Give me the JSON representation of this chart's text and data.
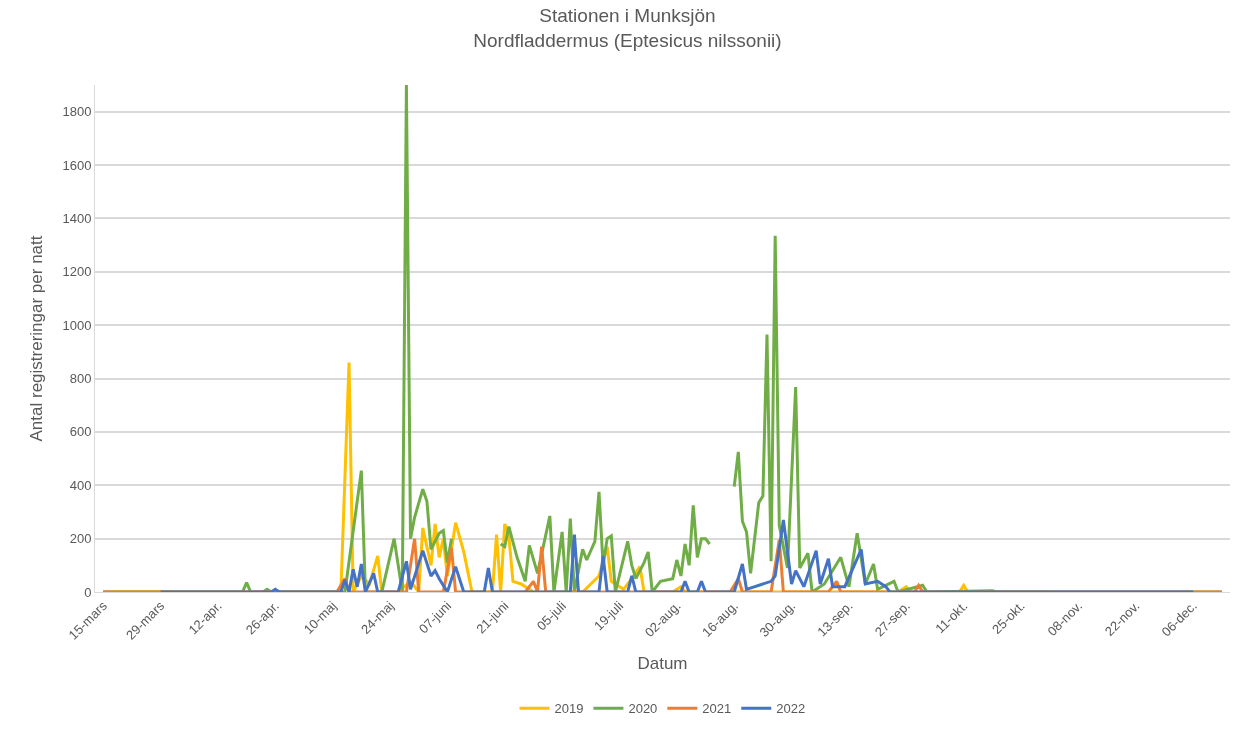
{
  "chart_data": {
    "type": "line",
    "title": "Stationen i Munksjön\nNordfladdermus (Eptesicus nilssonii)",
    "xlabel": "Datum",
    "ylabel": "Antal registreringar per natt",
    "xlim": [
      "--03-13",
      "--12-15"
    ],
    "xticks": [
      {
        "value": "--03-15",
        "label": "15-mars"
      },
      {
        "value": "--03-29",
        "label": "29-mars"
      },
      {
        "value": "--04-12",
        "label": "12-apr."
      },
      {
        "value": "--04-26",
        "label": "26-apr."
      },
      {
        "value": "--05-10",
        "label": "10-maj"
      },
      {
        "value": "--05-24",
        "label": "24-maj"
      },
      {
        "value": "--06-07",
        "label": "07-juni"
      },
      {
        "value": "--06-21",
        "label": "21-juni"
      },
      {
        "value": "--07-05",
        "label": "05-juli"
      },
      {
        "value": "--07-19",
        "label": "19-juli"
      },
      {
        "value": "--08-02",
        "label": "02-aug."
      },
      {
        "value": "--08-16",
        "label": "16-aug."
      },
      {
        "value": "--08-30",
        "label": "30-aug."
      },
      {
        "value": "--09-13",
        "label": "13-sep."
      },
      {
        "value": "--09-27",
        "label": "27-sep."
      },
      {
        "value": "--10-11",
        "label": "11-okt."
      },
      {
        "value": "--10-25",
        "label": "25-okt."
      },
      {
        "value": "--11-08",
        "label": "08-nov."
      },
      {
        "value": "--11-22",
        "label": "22-nov."
      },
      {
        "value": "--12-06",
        "label": "06-dec."
      }
    ],
    "ylim": [
      0,
      1900
    ],
    "yticks": [
      0,
      200,
      400,
      600,
      800,
      1000,
      1200,
      1400,
      1600,
      1800
    ],
    "grid": "y",
    "legend": "bottom",
    "marker": "none",
    "line_style": "solid",
    "series": [
      {
        "name": "2019",
        "color": "#ffc000",
        "x": [
          "--03-15",
          "--05-12",
          "--05-14",
          "--05-15",
          "--05-17",
          "--05-19",
          "--05-21",
          "--05-22",
          "--05-26",
          "--05-29",
          "--05-31",
          "--06-01",
          "--06-03",
          "--06-04",
          "--06-05",
          "--06-06",
          "--06-07",
          "--06-09",
          "--06-11",
          "--06-13",
          "--06-18",
          "--06-19",
          "--06-20",
          "--06-21",
          "--06-22",
          "--06-23",
          "--06-25",
          "--06-28",
          "--07-10",
          "--07-12",
          "--07-14",
          "--07-16",
          "--07-17",
          "--07-20",
          "--07-22",
          "--07-24",
          "--07-25",
          "--08-01",
          "--08-03",
          "--08-04",
          "--09-25",
          "--09-27",
          "--09-28",
          "--10-10",
          "--10-11",
          "--10-12",
          "--10-31"
        ],
        "values": [
          0,
          0,
          860,
          0,
          60,
          30,
          135,
          0,
          0,
          40,
          0,
          240,
          100,
          255,
          130,
          200,
          60,
          260,
          150,
          0,
          0,
          215,
          0,
          255,
          210,
          40,
          30,
          0,
          0,
          30,
          60,
          170,
          40,
          10,
          50,
          95,
          0,
          0,
          20,
          0,
          0,
          20,
          0,
          0,
          25,
          0,
          0
        ]
      },
      {
        "name": "2020",
        "color": "#70ad47",
        "x": [
          "--03-15",
          "--04-18",
          "--04-19",
          "--04-20",
          "--04-23",
          "--04-24",
          "--04-25",
          "--05-13",
          "--05-17",
          "--05-18",
          "--05-22",
          "--05-25",
          "--05-27",
          "--05-28",
          "--05-29",
          "--05-30",
          "--06-01",
          "--06-02",
          "--06-03",
          "--06-05",
          "--06-06",
          "--06-07",
          "--06-08",
          "--06-09",
          "--06-19",
          "--06-20",
          "--06-21",
          "--06-22",
          "--06-24",
          "--06-26",
          "--06-27",
          "--06-29",
          "--07-02",
          "--07-03",
          "--07-05",
          "--07-06",
          "--07-07",
          "--07-08",
          "--07-10",
          "--07-11",
          "--07-13",
          "--07-14",
          "--07-15",
          "--07-16",
          "--07-17",
          "--07-18",
          "--07-21",
          "--07-22",
          "--07-23",
          "--07-25",
          "--07-26",
          "--07-27",
          "--07-29",
          "--08-01",
          "--08-02",
          "--08-03",
          "--08-04",
          "--08-05",
          "--08-06",
          "--08-07",
          "--08-08",
          "--08-09",
          "--08-10",
          "--08-11",
          "--08-15",
          "--08-16",
          "--08-17",
          "--08-18",
          "--08-19",
          "--08-20",
          "--08-22",
          "--08-23",
          "--08-24",
          "--08-25",
          "--08-26",
          "--08-27",
          "--08-29",
          "--08-31",
          "--09-01",
          "--09-03",
          "--09-04",
          "--09-07",
          "--09-11",
          "--09-13",
          "--09-15",
          "--09-17",
          "--09-19",
          "--09-20",
          "--09-24",
          "--09-25",
          "--10-01",
          "--10-02",
          "--10-18",
          "--10-19",
          "--12-13"
        ],
        "values": [
          0,
          0,
          35,
          0,
          0,
          10,
          0,
          0,
          455,
          0,
          0,
          200,
          0,
          1900,
          200,
          280,
          385,
          340,
          160,
          220,
          230,
          110,
          200,
          null,
          null,
          180,
          170,
          245,
          130,
          40,
          175,
          70,
          285,
          0,
          225,
          0,
          275,
          0,
          160,
          120,
          190,
          375,
          100,
          200,
          210,
          0,
          190,
          100,
          50,
          110,
          150,
          0,
          40,
          50,
          120,
          60,
          180,
          100,
          325,
          130,
          200,
          200,
          180,
          null,
          null,
          395,
          525,
          265,
          225,
          70,
          335,
          360,
          965,
          115,
          1335,
          250,
          90,
          768,
          90,
          145,
          0,
          30,
          130,
          20,
          220,
          30,
          105,
          10,
          40,
          0,
          25,
          0,
          5,
          0,
          0
        ]
      },
      {
        "name": "2021",
        "color": "#ed7d31",
        "x": [
          "--03-15",
          "--05-11",
          "--05-13",
          "--05-14",
          "--05-28",
          "--05-30",
          "--05-31",
          "--06-06",
          "--06-08",
          "--06-09",
          "--06-26",
          "--06-28",
          "--06-29",
          "--06-30",
          "--07-01",
          "--08-15",
          "--08-17",
          "--08-18",
          "--08-25",
          "--08-27",
          "--08-28",
          "--09-08",
          "--09-10",
          "--09-11",
          "--09-29",
          "--09-30",
          "--10-01",
          "--12-13"
        ],
        "values": [
          0,
          0,
          50,
          0,
          0,
          200,
          0,
          0,
          165,
          0,
          0,
          40,
          0,
          170,
          0,
          0,
          50,
          0,
          0,
          195,
          0,
          0,
          40,
          0,
          0,
          25,
          0,
          0
        ]
      },
      {
        "name": "2022",
        "color": "#4472c4",
        "x": [
          "--03-29",
          "--04-25",
          "--04-26",
          "--04-27",
          "--05-12",
          "--05-13",
          "--05-14",
          "--05-15",
          "--05-16",
          "--05-17",
          "--05-18",
          "--05-20",
          "--05-21",
          "--05-26",
          "--05-28",
          "--05-29",
          "--06-01",
          "--06-03",
          "--06-04",
          "--06-05",
          "--06-07",
          "--06-09",
          "--06-11",
          "--06-16",
          "--06-17",
          "--06-18",
          "--07-07",
          "--07-08",
          "--07-09",
          "--07-14",
          "--07-15",
          "--07-16",
          "--07-21",
          "--07-22",
          "--07-23",
          "--08-03",
          "--08-04",
          "--08-05",
          "--08-07",
          "--08-08",
          "--08-09",
          "--08-16",
          "--08-18",
          "--08-19",
          "--08-25",
          "--08-26",
          "--08-28",
          "--08-30",
          "--08-31",
          "--09-02",
          "--09-05",
          "--09-06",
          "--09-08",
          "--09-09",
          "--09-12",
          "--09-16",
          "--09-17",
          "--09-20",
          "--09-22",
          "--09-23",
          "--12-06"
        ],
        "values": [
          0,
          0,
          10,
          0,
          0,
          45,
          0,
          85,
          20,
          105,
          0,
          70,
          0,
          0,
          115,
          10,
          155,
          60,
          80,
          50,
          0,
          95,
          0,
          0,
          90,
          0,
          0,
          215,
          0,
          0,
          135,
          0,
          0,
          60,
          0,
          0,
          40,
          0,
          0,
          40,
          0,
          0,
          105,
          10,
          40,
          60,
          270,
          30,
          80,
          20,
          155,
          30,
          125,
          20,
          20,
          160,
          30,
          40,
          20,
          0,
          0
        ]
      }
    ]
  }
}
